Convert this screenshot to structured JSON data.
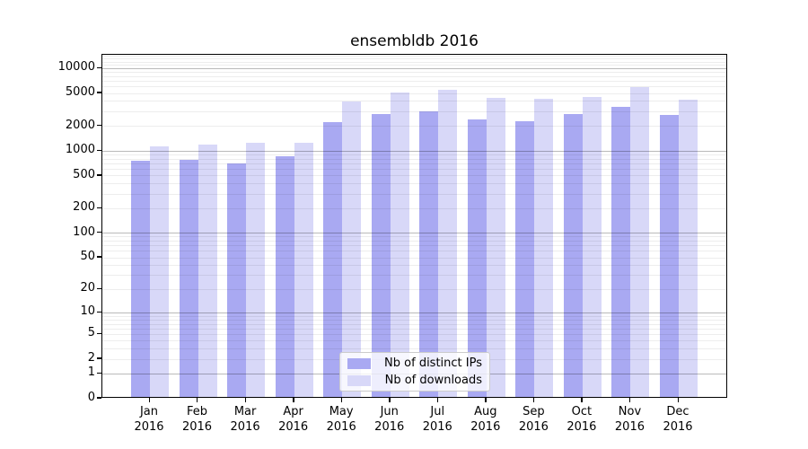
{
  "chart_data": {
    "type": "bar",
    "title": "ensembldb 2016",
    "categories": [
      "Jan",
      "Feb",
      "Mar",
      "Apr",
      "May",
      "Jun",
      "Jul",
      "Aug",
      "Sep",
      "Oct",
      "Nov",
      "Dec"
    ],
    "year_label": "2016",
    "series": [
      {
        "name": "Nb of distinct IPs",
        "color": "#a9a9f2",
        "values": [
          720,
          750,
          680,
          830,
          2130,
          2680,
          2860,
          2290,
          2190,
          2660,
          3300,
          2640
        ]
      },
      {
        "name": "Nb of downloads",
        "color": "#d8d8f8",
        "values": [
          1080,
          1130,
          1190,
          1190,
          3840,
          4840,
          5260,
          4170,
          4060,
          4270,
          5700,
          3950
        ]
      }
    ],
    "y_scale": "log1p",
    "y_ticks": [
      0,
      1,
      2,
      5,
      10,
      20,
      50,
      100,
      200,
      500,
      1000,
      2000,
      5000,
      10000
    ],
    "y_major_gridlines": [
      1,
      10,
      100,
      1000,
      10000
    ],
    "ylim": [
      0,
      14700
    ],
    "xlabel": "",
    "ylabel": "",
    "grid": "horizontal",
    "legend_position": "lower-center"
  }
}
